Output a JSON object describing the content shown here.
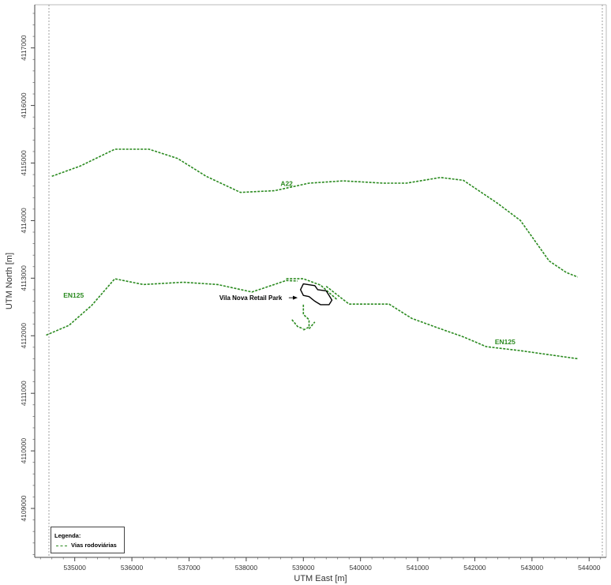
{
  "map": {
    "x_axis_title": "UTM East [m]",
    "y_axis_title": "UTM North [m]",
    "x_ticks": [
      "535000",
      "536000",
      "537000",
      "538000",
      "539000",
      "540000",
      "541000",
      "542000",
      "543000",
      "544000"
    ],
    "y_ticks": [
      "4109000",
      "4110000",
      "4111000",
      "4112000",
      "4113000",
      "4114000",
      "4115000",
      "4116000",
      "4117000"
    ],
    "x_range": [
      534300,
      544300
    ],
    "y_range": [
      4108150,
      4117750
    ],
    "road_color": "#2a8a1f",
    "roads": [
      {
        "label": "A22",
        "label_at": [
          538600,
          4114600
        ],
        "points": [
          [
            534600,
            4114770
          ],
          [
            535100,
            4114950
          ],
          [
            535700,
            4115240
          ],
          [
            536300,
            4115240
          ],
          [
            536800,
            4115080
          ],
          [
            537300,
            4114770
          ],
          [
            537900,
            4114490
          ],
          [
            538500,
            4114520
          ],
          [
            539100,
            4114650
          ],
          [
            539700,
            4114690
          ],
          [
            540400,
            4114650
          ],
          [
            540800,
            4114650
          ],
          [
            541400,
            4114750
          ],
          [
            541800,
            4114700
          ],
          [
            542400,
            4114300
          ],
          [
            542800,
            4114000
          ],
          [
            543300,
            4113300
          ],
          [
            543600,
            4113100
          ],
          [
            543800,
            4113020
          ]
        ]
      },
      {
        "label": "EN125",
        "label_at": [
          534800,
          4112660
        ],
        "points": [
          [
            534500,
            4112010
          ],
          [
            534900,
            4112180
          ],
          [
            535300,
            4112530
          ],
          [
            535700,
            4112990
          ],
          [
            536200,
            4112890
          ],
          [
            536900,
            4112930
          ],
          [
            537500,
            4112890
          ],
          [
            538100,
            4112760
          ],
          [
            538700,
            4112960
          ],
          [
            538900,
            4112950
          ]
        ]
      },
      {
        "label": "EN125",
        "label_at": [
          542350,
          4111850
        ],
        "points": [
          [
            539400,
            4112860
          ],
          [
            539800,
            4112550
          ],
          [
            540500,
            4112550
          ],
          [
            540900,
            4112300
          ],
          [
            541400,
            4112120
          ],
          [
            541800,
            4111980
          ],
          [
            542200,
            4111810
          ],
          [
            542800,
            4111740
          ],
          [
            543800,
            4111600
          ]
        ]
      },
      {
        "label": "",
        "points": [
          [
            538700,
            4112990
          ],
          [
            539000,
            4112990
          ],
          [
            539300,
            4112880
          ],
          [
            539600,
            4112620
          ]
        ]
      },
      {
        "label": "",
        "points": [
          [
            539000,
            4112540
          ],
          [
            539000,
            4112370
          ],
          [
            539100,
            4112280
          ],
          [
            539100,
            4112150
          ],
          [
            539000,
            4112100
          ]
        ]
      },
      {
        "label": "",
        "points": [
          [
            538800,
            4112280
          ],
          [
            538900,
            4112160
          ],
          [
            539000,
            4112120
          ]
        ]
      },
      {
        "label": "",
        "points": [
          [
            539100,
            4112120
          ],
          [
            539200,
            4112240
          ]
        ]
      }
    ],
    "site_outline": [
      [
        539000,
        4112900
      ],
      [
        539200,
        4112870
      ],
      [
        539250,
        4112800
      ],
      [
        539400,
        4112780
      ],
      [
        539450,
        4112700
      ],
      [
        539500,
        4112620
      ],
      [
        539450,
        4112540
      ],
      [
        539300,
        4112540
      ],
      [
        539200,
        4112600
      ],
      [
        539100,
        4112680
      ],
      [
        539000,
        4112700
      ],
      [
        538950,
        4112800
      ],
      [
        539000,
        4112900
      ]
    ],
    "annotation": {
      "label": "Vila Nova Retail Park",
      "label_at": [
        537530,
        4112660
      ],
      "arrow_to": [
        538900,
        4112660
      ]
    }
  },
  "legend": {
    "title": "Legenda:",
    "item_label": "Vias rodoviárias"
  }
}
